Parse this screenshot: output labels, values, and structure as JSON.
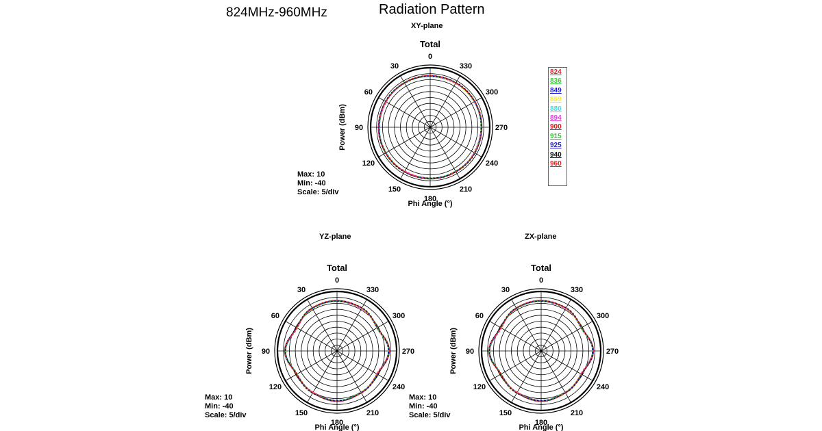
{
  "freq_range": "824MHz-960MHz",
  "title": "Radiation Pattern",
  "legend": [
    {
      "label": "824",
      "color": "#e8242a"
    },
    {
      "label": "836",
      "color": "#3ecf3e"
    },
    {
      "label": "849",
      "color": "#2020d8"
    },
    {
      "label": "869",
      "color": "#f5e93a"
    },
    {
      "label": "880",
      "color": "#3fe0e0"
    },
    {
      "label": "894",
      "color": "#e040e0"
    },
    {
      "label": "900",
      "color": "#d81818"
    },
    {
      "label": "915",
      "color": "#32c832"
    },
    {
      "label": "925",
      "color": "#2828c8"
    },
    {
      "label": "940",
      "color": "#111111"
    },
    {
      "label": "960",
      "color": "#e82020"
    }
  ],
  "chart_data": [
    {
      "type": "polar",
      "plane": "XY-plane",
      "title": "Total",
      "ylabel": "Power (dBm)",
      "xlabel": "Phi Angle (°)",
      "max_label": "Max: 10",
      "min_label": "Min: -40",
      "scale_label": "Scale: 5/div",
      "r_range": [
        -40,
        10
      ],
      "angle_ticks": [
        "0",
        "30",
        "60",
        "90",
        "120",
        "150",
        "180",
        "210",
        "240",
        "270",
        "300",
        "330"
      ],
      "series": [
        {
          "r_dbm": [
            3,
            3,
            3,
            3,
            3,
            3,
            3,
            3,
            3,
            3,
            3,
            3
          ]
        }
      ]
    },
    {
      "type": "polar",
      "plane": "YZ-plane",
      "title": "Total",
      "ylabel": "Power (dBm)",
      "xlabel": "Phi Angle (°)",
      "max_label": "Max: 10",
      "min_label": "Min: -40",
      "scale_label": "Scale: 5/div",
      "r_range": [
        -40,
        10
      ],
      "angle_ticks": [
        "0",
        "30",
        "60",
        "90",
        "120",
        "150",
        "180",
        "210",
        "240",
        "270",
        "300",
        "330"
      ],
      "series": [
        {
          "r_dbm": [
            2,
            1.5,
            -1,
            3.5,
            -1,
            0.5,
            2,
            0.5,
            -1,
            3.5,
            -1,
            1.5
          ]
        }
      ]
    },
    {
      "type": "polar",
      "plane": "ZX-plane",
      "title": "Total",
      "ylabel": "Power (dBm)",
      "xlabel": "Phi Angle (°)",
      "max_label": "",
      "min_label": "",
      "scale_label": "",
      "r_range": [
        -40,
        10
      ],
      "angle_ticks": [
        "0",
        "30",
        "60",
        "90",
        "120",
        "150",
        "180",
        "210",
        "240",
        "270",
        "300",
        "330"
      ],
      "series": [
        {
          "r_dbm": [
            2,
            1.5,
            -1,
            3.5,
            -1,
            0.5,
            2,
            0.5,
            -1,
            3.5,
            -1,
            1.5
          ]
        }
      ]
    }
  ]
}
